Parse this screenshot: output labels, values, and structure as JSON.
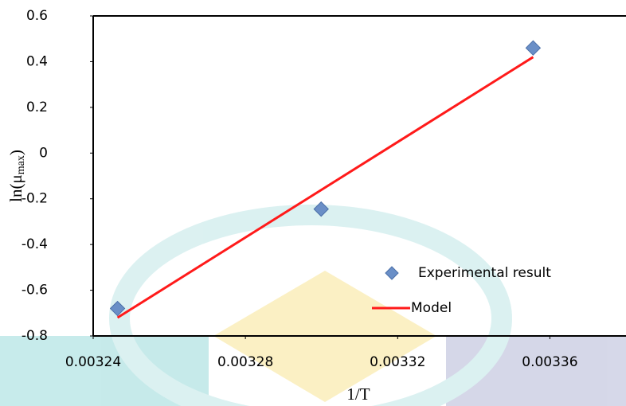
{
  "chart_data": {
    "type": "scatter",
    "xlabel": "1/T",
    "ylabel": {
      "base": "ln(μ",
      "sub": "max",
      "close": ")"
    },
    "xlim": [
      0.00324,
      0.00338
    ],
    "xticks": [
      0.00324,
      0.00328,
      0.00332,
      0.00336
    ],
    "ylim": [
      -0.8,
      0.6
    ],
    "yticks": [
      -0.8,
      -0.6,
      -0.4,
      -0.2,
      0,
      0.2,
      0.4,
      0.6
    ],
    "series": [
      {
        "name": "Experimental result",
        "color": "#6a8fc7",
        "marker": "diamond",
        "x": [
          0.0032464,
          0.0032999,
          0.0033556
        ],
        "values": [
          -0.68,
          -0.245,
          0.46
        ]
      },
      {
        "name": "Model",
        "color": "#ff1a1a",
        "marker": "line",
        "x": [
          0.0032464,
          0.0033556
        ],
        "values": [
          -0.72,
          0.42
        ]
      }
    ],
    "legend": "lower-right"
  }
}
